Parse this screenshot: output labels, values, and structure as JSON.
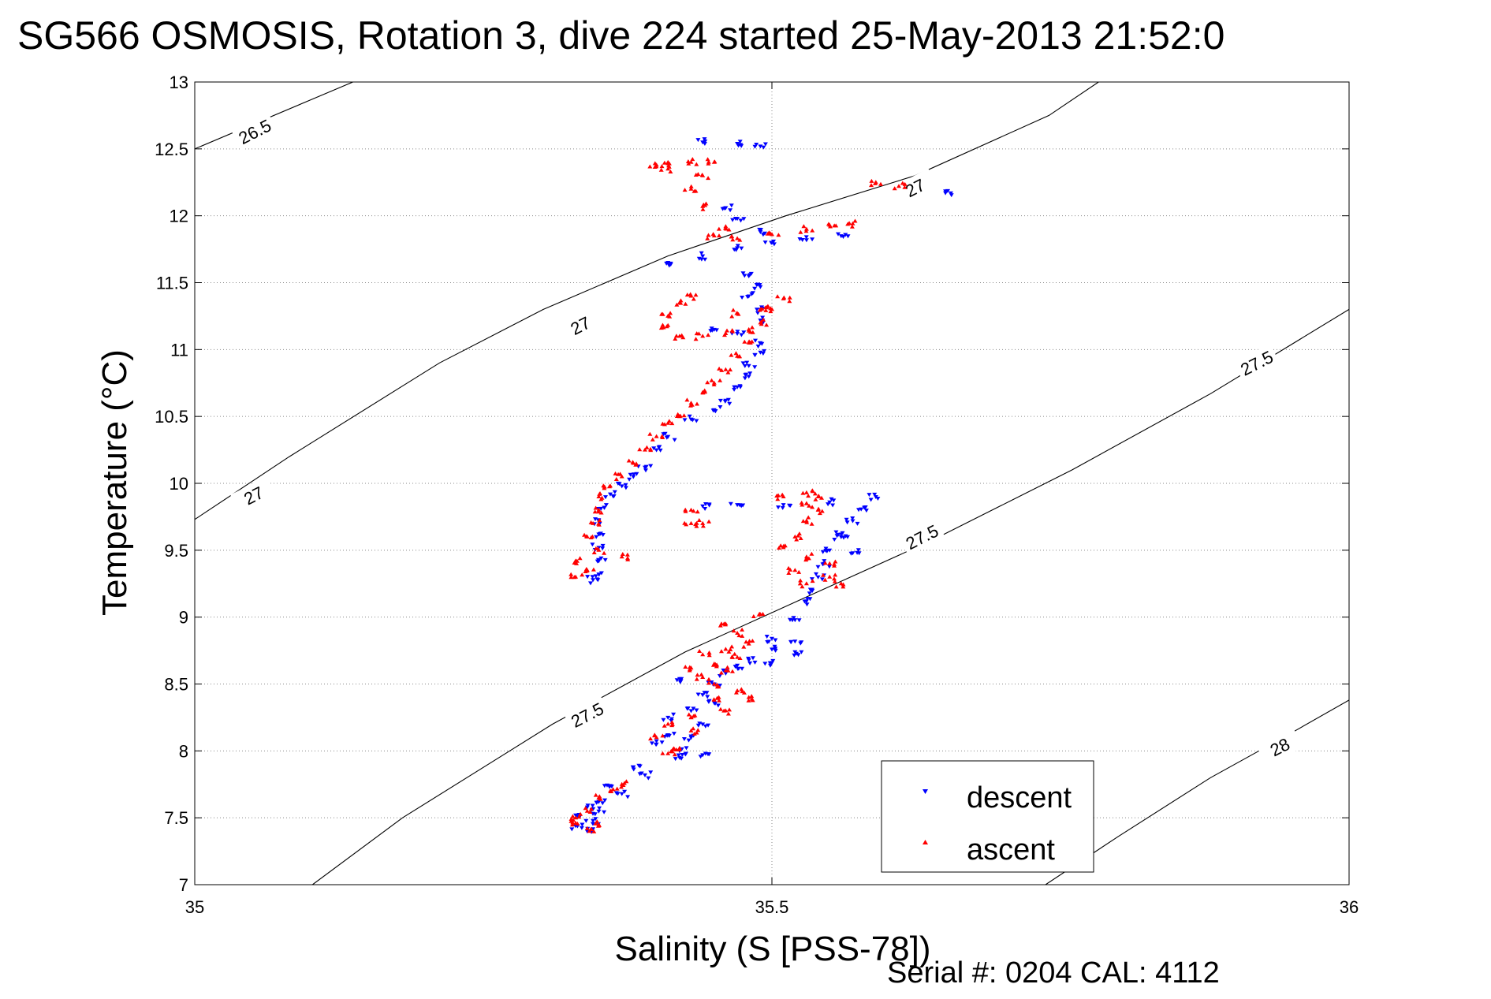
{
  "chart_data": {
    "type": "scatter",
    "title": "SG566 OSMOSIS, Rotation 3, dive 224 started 25-May-2013 21:52:0",
    "xlabel": "Salinity (S [PSS-78])",
    "ylabel": "Temperature (°C)",
    "xlim": [
      35,
      36
    ],
    "ylim": [
      7,
      13
    ],
    "x_ticks": [
      35,
      35.5,
      36
    ],
    "x_tick_labels": [
      "35",
      "35.5",
      "36"
    ],
    "y_ticks": [
      7,
      7.5,
      8,
      8.5,
      9,
      9.5,
      10,
      10.5,
      11,
      11.5,
      12,
      12.5,
      13
    ],
    "y_tick_labels": [
      "7",
      "7.5",
      "8",
      "8.5",
      "9",
      "9.5",
      "10",
      "10.5",
      "11",
      "11.5",
      "12",
      "12.5",
      "13"
    ],
    "grid": true,
    "legend_position": "bottom-right",
    "footer": "Serial #: 0204  CAL: 4112",
    "contours": [
      {
        "label": "26.5",
        "x": [
          35.0,
          35.137
        ],
        "y": [
          12.5,
          13.0
        ]
      },
      {
        "label": "27",
        "x": [
          35.0,
          35.082,
          35.212,
          35.302,
          35.41,
          35.512,
          35.624,
          35.74,
          35.783
        ],
        "y": [
          9.73,
          10.2,
          10.9,
          11.3,
          11.7,
          12.0,
          12.3,
          12.75,
          13.0
        ]
      },
      {
        "label": "27.5",
        "x": [
          35.102,
          35.18,
          35.31,
          35.425,
          35.535,
          35.64,
          35.76,
          35.88,
          36.0
        ],
        "y": [
          7.0,
          7.5,
          8.2,
          8.74,
          9.17,
          9.58,
          10.1,
          10.67,
          11.3
        ]
      },
      {
        "label": "28",
        "x": [
          35.737,
          35.8,
          35.88,
          35.945,
          36.0
        ],
        "y": [
          7.0,
          7.36,
          7.8,
          8.11,
          8.38
        ]
      }
    ],
    "contour_labels": [
      {
        "text": "26.5",
        "x": 35.052,
        "y": 12.63
      },
      {
        "text": "27",
        "x": 35.051,
        "y": 9.91
      },
      {
        "text": "27",
        "x": 35.334,
        "y": 11.18
      },
      {
        "text": "27",
        "x": 35.624,
        "y": 12.21
      },
      {
        "text": "27.5",
        "x": 35.34,
        "y": 8.27
      },
      {
        "text": "27.5",
        "x": 35.63,
        "y": 9.6
      },
      {
        "text": "27.5",
        "x": 35.92,
        "y": 10.9
      },
      {
        "text": "28",
        "x": 35.94,
        "y": 8.03
      }
    ],
    "series": [
      {
        "name": "descent",
        "color": "#0000ff",
        "marker": "triangle-down",
        "anchors": [
          [
            35.44,
            12.55
          ],
          [
            35.47,
            12.54
          ],
          [
            35.49,
            12.52
          ],
          [
            35.46,
            12.06
          ],
          [
            35.47,
            11.98
          ],
          [
            35.49,
            11.88
          ],
          [
            35.41,
            11.65
          ],
          [
            35.44,
            11.7
          ],
          [
            35.47,
            11.76
          ],
          [
            35.5,
            11.8
          ],
          [
            35.53,
            11.82
          ],
          [
            35.56,
            11.85
          ],
          [
            35.48,
            11.55
          ],
          [
            35.49,
            11.47
          ],
          [
            35.48,
            11.4
          ],
          [
            35.49,
            11.3
          ],
          [
            35.49,
            11.22
          ],
          [
            35.45,
            11.15
          ],
          [
            35.47,
            11.12
          ],
          [
            35.49,
            11.05
          ],
          [
            35.49,
            10.98
          ],
          [
            35.48,
            10.88
          ],
          [
            35.48,
            10.8
          ],
          [
            35.47,
            10.72
          ],
          [
            35.46,
            10.62
          ],
          [
            35.45,
            10.55
          ],
          [
            35.43,
            10.48
          ],
          [
            35.41,
            10.35
          ],
          [
            35.4,
            10.25
          ],
          [
            35.39,
            10.12
          ],
          [
            35.38,
            10.05
          ],
          [
            35.37,
            9.98
          ],
          [
            35.36,
            9.92
          ],
          [
            35.355,
            9.82
          ],
          [
            35.35,
            9.72
          ],
          [
            35.35,
            9.62
          ],
          [
            35.35,
            9.52
          ],
          [
            35.35,
            9.42
          ],
          [
            35.35,
            9.32
          ],
          [
            35.345,
            9.28
          ],
          [
            35.44,
            9.83
          ],
          [
            35.47,
            9.84
          ],
          [
            35.51,
            9.84
          ],
          [
            35.55,
            9.86
          ],
          [
            35.59,
            9.9
          ],
          [
            35.58,
            9.82
          ],
          [
            35.57,
            9.72
          ],
          [
            35.56,
            9.6
          ],
          [
            35.55,
            9.5
          ],
          [
            35.545,
            9.4
          ],
          [
            35.54,
            9.3
          ],
          [
            35.535,
            9.2
          ],
          [
            35.53,
            9.12
          ],
          [
            35.52,
            8.98
          ],
          [
            35.57,
            9.48
          ],
          [
            35.56,
            9.62
          ],
          [
            35.5,
            8.84
          ],
          [
            35.52,
            8.82
          ],
          [
            35.5,
            8.76
          ],
          [
            35.52,
            8.74
          ],
          [
            35.48,
            8.68
          ],
          [
            35.5,
            8.66
          ],
          [
            35.47,
            8.64
          ],
          [
            35.46,
            8.58
          ],
          [
            35.45,
            8.5
          ],
          [
            35.42,
            8.54
          ],
          [
            35.44,
            8.42
          ],
          [
            35.45,
            8.36
          ],
          [
            35.43,
            8.3
          ],
          [
            35.41,
            8.25
          ],
          [
            35.44,
            8.2
          ],
          [
            35.41,
            8.12
          ],
          [
            35.43,
            8.1
          ],
          [
            35.4,
            8.05
          ],
          [
            35.42,
            8.0
          ],
          [
            35.44,
            7.97
          ],
          [
            35.42,
            7.95
          ],
          [
            35.38,
            7.88
          ],
          [
            35.39,
            7.82
          ],
          [
            35.36,
            7.74
          ],
          [
            35.37,
            7.68
          ],
          [
            35.35,
            7.62
          ],
          [
            35.34,
            7.58
          ],
          [
            35.35,
            7.55
          ],
          [
            35.33,
            7.52
          ],
          [
            35.33,
            7.44
          ],
          [
            35.34,
            7.4
          ],
          [
            35.345,
            7.48
          ],
          [
            35.655,
            12.17
          ]
        ]
      },
      {
        "name": "ascent",
        "color": "#ff0000",
        "marker": "triangle-up",
        "anchors": [
          [
            35.4,
            12.38
          ],
          [
            35.41,
            12.39
          ],
          [
            35.43,
            12.4
          ],
          [
            35.45,
            12.4
          ],
          [
            35.41,
            12.35
          ],
          [
            35.44,
            12.3
          ],
          [
            35.43,
            12.2
          ],
          [
            35.44,
            12.07
          ],
          [
            35.46,
            11.92
          ],
          [
            35.45,
            11.85
          ],
          [
            35.47,
            11.83
          ],
          [
            35.53,
            11.9
          ],
          [
            35.55,
            11.93
          ],
          [
            35.57,
            11.94
          ],
          [
            35.5,
            11.86
          ],
          [
            35.59,
            12.25
          ],
          [
            35.61,
            12.22
          ],
          [
            35.43,
            11.4
          ],
          [
            35.42,
            11.35
          ],
          [
            35.41,
            11.25
          ],
          [
            35.41,
            11.18
          ],
          [
            35.42,
            11.1
          ],
          [
            35.44,
            11.1
          ],
          [
            35.46,
            11.12
          ],
          [
            35.48,
            11.15
          ],
          [
            35.49,
            11.2
          ],
          [
            35.49,
            11.3
          ],
          [
            35.5,
            11.3
          ],
          [
            35.51,
            11.38
          ],
          [
            35.47,
            11.27
          ],
          [
            35.48,
            11.05
          ],
          [
            35.47,
            10.95
          ],
          [
            35.46,
            10.85
          ],
          [
            35.45,
            10.75
          ],
          [
            35.44,
            10.68
          ],
          [
            35.43,
            10.6
          ],
          [
            35.42,
            10.5
          ],
          [
            35.41,
            10.45
          ],
          [
            35.4,
            10.35
          ],
          [
            35.39,
            10.25
          ],
          [
            35.38,
            10.15
          ],
          [
            35.37,
            10.05
          ],
          [
            35.36,
            9.98
          ],
          [
            35.35,
            9.9
          ],
          [
            35.35,
            9.8
          ],
          [
            35.345,
            9.7
          ],
          [
            35.34,
            9.6
          ],
          [
            35.35,
            9.5
          ],
          [
            35.33,
            9.42
          ],
          [
            35.34,
            9.35
          ],
          [
            35.33,
            9.3
          ],
          [
            35.37,
            9.45
          ],
          [
            35.43,
            9.8
          ],
          [
            35.43,
            9.7
          ],
          [
            35.44,
            9.7
          ],
          [
            35.51,
            9.9
          ],
          [
            35.53,
            9.93
          ],
          [
            35.54,
            9.9
          ],
          [
            35.53,
            9.85
          ],
          [
            35.54,
            9.8
          ],
          [
            35.53,
            9.72
          ],
          [
            35.52,
            9.6
          ],
          [
            35.51,
            9.52
          ],
          [
            35.53,
            9.45
          ],
          [
            35.55,
            9.4
          ],
          [
            35.52,
            9.35
          ],
          [
            35.55,
            9.3
          ],
          [
            35.56,
            9.25
          ],
          [
            35.53,
            9.25
          ],
          [
            35.49,
            9.02
          ],
          [
            35.46,
            8.95
          ],
          [
            35.47,
            8.88
          ],
          [
            35.48,
            8.8
          ],
          [
            35.46,
            8.76
          ],
          [
            35.44,
            8.72
          ],
          [
            35.47,
            8.7
          ],
          [
            35.45,
            8.65
          ],
          [
            35.43,
            8.62
          ],
          [
            35.46,
            8.6
          ],
          [
            35.44,
            8.55
          ],
          [
            35.45,
            8.5
          ],
          [
            35.47,
            8.45
          ],
          [
            35.48,
            8.4
          ],
          [
            35.45,
            8.38
          ],
          [
            35.46,
            8.3
          ],
          [
            35.43,
            8.25
          ],
          [
            35.41,
            8.2
          ],
          [
            35.43,
            8.15
          ],
          [
            35.4,
            8.1
          ],
          [
            35.42,
            8.02
          ],
          [
            35.41,
            7.98
          ],
          [
            35.37,
            7.75
          ],
          [
            35.36,
            7.7
          ],
          [
            35.35,
            7.65
          ],
          [
            35.34,
            7.55
          ],
          [
            35.33,
            7.5
          ],
          [
            35.35,
            7.45
          ],
          [
            35.34,
            7.42
          ],
          [
            35.33,
            7.46
          ]
        ]
      }
    ]
  }
}
